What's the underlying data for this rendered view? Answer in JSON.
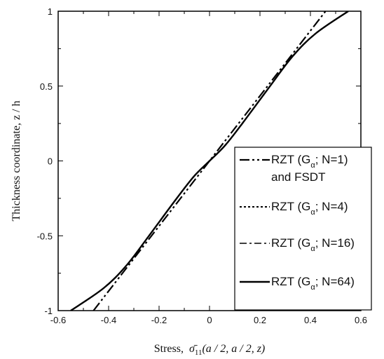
{
  "chart_data": {
    "type": "line",
    "xlabel": "Stress,",
    "xlabel_symbol": "σ̄",
    "xlabel_sub": "11",
    "xlabel_args": "(a / 2, a / 2, z)",
    "ylabel": "Thickness coordinate, z / h",
    "xlim": [
      -0.6,
      0.6
    ],
    "ylim": [
      -1,
      1
    ],
    "xticks": [
      "-0.6",
      "-0.4",
      "-0.2",
      "0",
      "0.2",
      "0.4",
      "0.6"
    ],
    "yticks": [
      "-1",
      "-0.5",
      "0",
      "0.5",
      "1"
    ],
    "legend_position": "right",
    "series": [
      {
        "name": "RZT (Gα; N=1) and FSDT",
        "legend_line1": "RZT (G",
        "legend_sub": "α",
        "legend_suffix": "; N=1)",
        "legend_line2": "and FSDT",
        "style": "dash-dot-dot",
        "x": [
          -0.46,
          -0.23,
          0.0,
          0.23,
          0.46
        ],
        "z": [
          -1.0,
          -0.5,
          0.0,
          0.5,
          1.0
        ]
      },
      {
        "name": "RZT (Gα; N=4)",
        "legend_line1": "RZT (G",
        "legend_sub": "α",
        "legend_suffix": "; N=4)",
        "style": "dotted",
        "x": [
          -0.55,
          -0.42,
          -0.33,
          -0.24,
          -0.13,
          -0.06,
          0.0,
          0.06,
          0.13,
          0.24,
          0.33,
          0.42,
          0.55
        ],
        "z": [
          -1.0,
          -0.85,
          -0.7,
          -0.5,
          -0.25,
          -0.1,
          0.0,
          0.1,
          0.25,
          0.5,
          0.7,
          0.85,
          1.0
        ]
      },
      {
        "name": "RZT (Gα; N=16)",
        "legend_line1": "RZT (G",
        "legend_sub": "α",
        "legend_suffix": "; N=16)",
        "style": "dash-dot",
        "x": [
          -0.55,
          -0.42,
          -0.33,
          -0.24,
          -0.13,
          -0.06,
          0.0,
          0.06,
          0.13,
          0.24,
          0.33,
          0.42,
          0.55
        ],
        "z": [
          -1.0,
          -0.85,
          -0.7,
          -0.5,
          -0.25,
          -0.1,
          0.0,
          0.1,
          0.25,
          0.5,
          0.7,
          0.85,
          1.0
        ]
      },
      {
        "name": "RZT (Gα; N=64)",
        "legend_line1": "RZT (G",
        "legend_sub": "α",
        "legend_suffix": "; N=64)",
        "style": "solid",
        "x": [
          -0.55,
          -0.42,
          -0.33,
          -0.24,
          -0.13,
          -0.06,
          0.0,
          0.06,
          0.13,
          0.24,
          0.33,
          0.42,
          0.55
        ],
        "z": [
          -1.0,
          -0.85,
          -0.7,
          -0.5,
          -0.25,
          -0.1,
          0.0,
          0.1,
          0.25,
          0.5,
          0.7,
          0.85,
          1.0
        ]
      }
    ]
  }
}
